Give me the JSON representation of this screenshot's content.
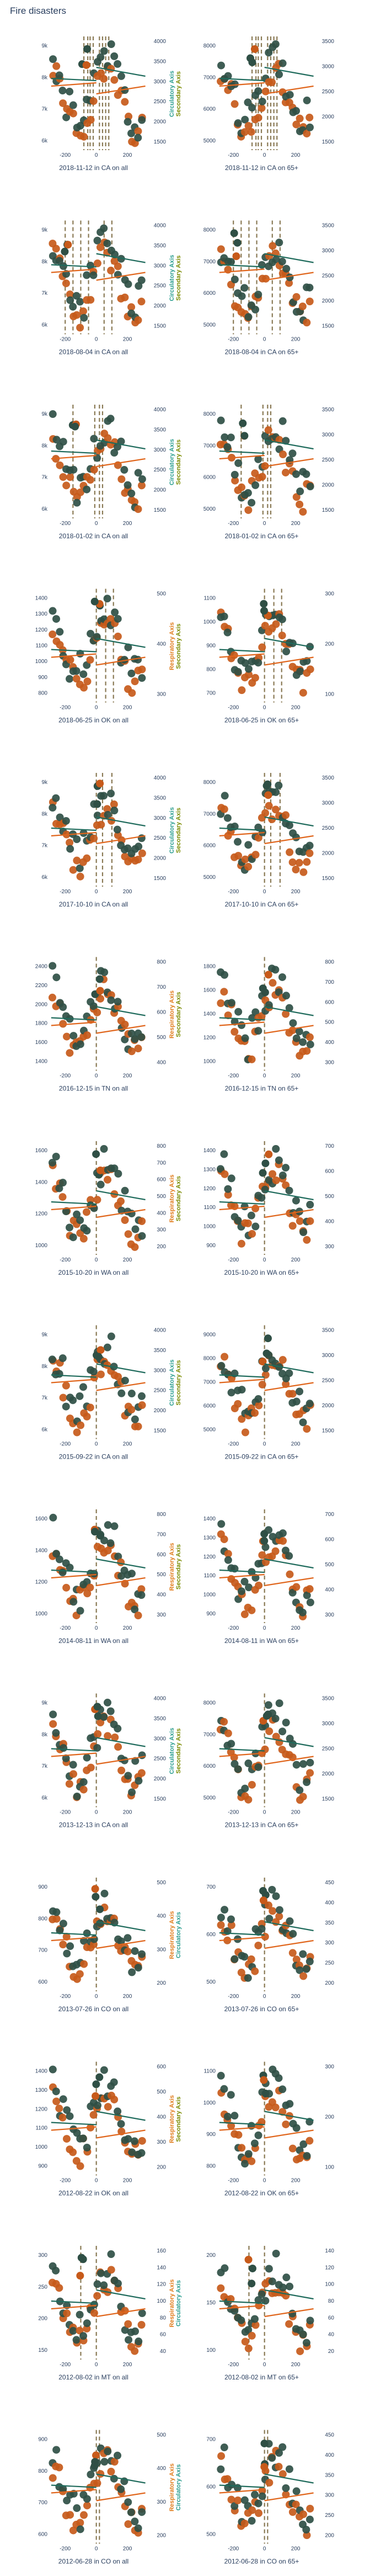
{
  "title": "Fire disasters",
  "colors": {
    "circulatory": "#1f6b5c",
    "respiratory": "#e0651b",
    "dot_dark": "#2f4f45",
    "dot_orange": "#c75a1a",
    "vline": "#8a7a55",
    "axis_text": "#2a3f5f",
    "circ_axis": "#2a9d8f",
    "resp_axis": "#e07b1a",
    "sec_axis": "#7a8b00"
  },
  "panels": [
    {
      "caption": "2018-11-12 in CA on all",
      "yticks": [
        "9k",
        "8k",
        "7k",
        "6k"
      ],
      "y2ticks": [
        "4000",
        "3500",
        "3000",
        "2500",
        "2000",
        "1500"
      ],
      "y2range": [
        1200,
        4300
      ],
      "seed": 1,
      "vlines": [
        -80,
        -55,
        -40,
        -20,
        20,
        40,
        60,
        80
      ],
      "level": 0.62,
      "lbl": "circ-sec",
      "xticks": [
        "-200",
        "0",
        "200"
      ]
    },
    {
      "caption": "2018-11-12 in CA on 65+",
      "yticks": [
        "8000",
        "7000",
        "6000",
        "5000"
      ],
      "y2ticks": [
        "3500",
        "3000",
        "2500",
        "2000",
        "1500"
      ],
      "y2range": [
        1200,
        3600
      ],
      "seed": 2,
      "vlines": [
        -80,
        -55,
        -40,
        -20,
        20,
        40,
        60,
        80
      ],
      "level": 0.62,
      "lbl": "",
      "xticks": [
        "-200",
        "0",
        "200"
      ]
    },
    {
      "caption": "2018-08-04 in CA on all",
      "yticks": [
        "9k",
        "8k",
        "7k",
        "6k"
      ],
      "y2ticks": [
        "4000",
        "3500",
        "3000",
        "2500",
        "2000",
        "1500"
      ],
      "y2range": [
        1200,
        4300
      ],
      "seed": 3,
      "vlines": [
        -200,
        -150,
        -100,
        -50,
        50,
        100
      ],
      "level": 0.6,
      "lbl": "circ-sec",
      "xticks": [
        "-200",
        "0",
        "200"
      ]
    },
    {
      "caption": "2018-08-04 in CA on 65+",
      "yticks": [
        "8000",
        "7000",
        "6000",
        "5000"
      ],
      "y2ticks": [
        "3500",
        "3000",
        "2500",
        "2000",
        "1500"
      ],
      "y2range": [
        1200,
        3600
      ],
      "seed": 4,
      "vlines": [
        -200,
        -150,
        -100,
        -50,
        50,
        100
      ],
      "level": 0.6,
      "lbl": "",
      "xticks": [
        "-200",
        "0",
        "200"
      ]
    },
    {
      "caption": "2018-01-02 in CA on all",
      "yticks": [
        "9k",
        "8k",
        "7k",
        "6k"
      ],
      "y2ticks": [
        "4000",
        "3500",
        "3000",
        "2500",
        "2000",
        "1500"
      ],
      "y2range": [
        1200,
        4300
      ],
      "seed": 5,
      "vlines": [
        -150,
        -10,
        20,
        40
      ],
      "level": 0.58,
      "lbl": "circ-sec",
      "xticks": [
        "-200",
        "0",
        "200"
      ]
    },
    {
      "caption": "2018-01-02 in CA on 65+",
      "yticks": [
        "8000",
        "7000",
        "6000",
        "5000"
      ],
      "y2ticks": [
        "3500",
        "3000",
        "2500",
        "2000",
        "1500"
      ],
      "y2range": [
        1200,
        3600
      ],
      "seed": 6,
      "vlines": [
        -150,
        -10,
        20,
        40
      ],
      "level": 0.58,
      "lbl": "",
      "xticks": [
        "-200",
        "0",
        "200"
      ]
    },
    {
      "caption": "2018-06-25 in OK on all",
      "yticks": [
        "1400",
        "1300",
        "1200",
        "1100",
        "1000",
        "900",
        "800"
      ],
      "y2ticks": [
        "500",
        "400",
        "300"
      ],
      "y2range": [
        200,
        560
      ],
      "seed": 7,
      "vlines": [
        0,
        60,
        110
      ],
      "level": 0.45,
      "lbl": "resp-sec",
      "xticks": [
        "-200",
        "0",
        "200"
      ]
    },
    {
      "caption": "2018-06-25 in OK on 65+",
      "yticks": [
        "1100",
        "1000",
        "900",
        "800",
        "700"
      ],
      "y2ticks": [
        "300",
        "200",
        "100"
      ],
      "y2range": [
        60,
        360
      ],
      "seed": 8,
      "vlines": [
        0,
        60,
        110
      ],
      "level": 0.45,
      "lbl": "",
      "xticks": [
        "-200",
        "0",
        "200"
      ]
    },
    {
      "caption": "2017-10-10 in CA on all",
      "yticks": [
        "9k",
        "8k",
        "7k",
        "6k"
      ],
      "y2ticks": [
        "4000",
        "3500",
        "3000",
        "2500",
        "2000",
        "1500"
      ],
      "y2range": [
        1200,
        4300
      ],
      "seed": 9,
      "vlines": [
        0,
        40,
        100
      ],
      "level": 0.5,
      "lbl": "circ-sec",
      "xticks": [
        "-200",
        "0",
        "200"
      ]
    },
    {
      "caption": "2017-10-10 in CA on 65+",
      "yticks": [
        "8000",
        "7000",
        "6000",
        "5000"
      ],
      "y2ticks": [
        "3500",
        "3000",
        "2500",
        "2000",
        "1500"
      ],
      "y2range": [
        1200,
        3600
      ],
      "seed": 10,
      "vlines": [
        0,
        40,
        100
      ],
      "level": 0.5,
      "lbl": "",
      "xticks": [
        "-200",
        "0",
        "200"
      ]
    },
    {
      "caption": "2016-12-15 in TN on all",
      "yticks": [
        "2400",
        "2200",
        "2000",
        "1800",
        "1600",
        "1400"
      ],
      "y2ticks": [
        "800",
        "700",
        "600",
        "500",
        "400"
      ],
      "y2range": [
        340,
        880
      ],
      "seed": 11,
      "vlines": [
        0
      ],
      "level": 0.45,
      "lbl": "resp-sec",
      "xticks": [
        "-200",
        "0",
        "200"
      ]
    },
    {
      "caption": "2016-12-15 in TN on 65+",
      "yticks": [
        "1800",
        "1600",
        "1400",
        "1200",
        "1000"
      ],
      "y2ticks": [
        "800",
        "700",
        "600",
        "500",
        "400",
        "300"
      ],
      "y2range": [
        240,
        860
      ],
      "seed": 12,
      "vlines": [
        0
      ],
      "level": 0.45,
      "lbl": "",
      "xticks": [
        "-200",
        "0",
        "200"
      ]
    },
    {
      "caption": "2015-10-20 in WA on all",
      "yticks": [
        "1600",
        "1400",
        "1200",
        "1000"
      ],
      "y2ticks": [
        "800",
        "700",
        "600",
        "500",
        "400",
        "300",
        "200"
      ],
      "y2range": [
        150,
        860
      ],
      "seed": 13,
      "vlines": [
        0
      ],
      "level": 0.45,
      "lbl": "resp-sec",
      "xticks": [
        "-200",
        "0",
        "200"
      ]
    },
    {
      "caption": "2015-10-20 in WA on 65+",
      "yticks": [
        "1400",
        "1300",
        "1200",
        "1100",
        "1000",
        "900"
      ],
      "y2ticks": [
        "700",
        "600",
        "500",
        "400",
        "300"
      ],
      "y2range": [
        230,
        760
      ],
      "seed": 14,
      "vlines": [
        0
      ],
      "level": 0.45,
      "lbl": "",
      "xticks": [
        "-200",
        "0",
        "200"
      ]
    },
    {
      "caption": "2015-09-22 in CA on all",
      "yticks": [
        "9k",
        "8k",
        "7k",
        "6k"
      ],
      "y2ticks": [
        "4000",
        "3500",
        "3000",
        "2500",
        "2000",
        "1500"
      ],
      "y2range": [
        1200,
        4300
      ],
      "seed": 15,
      "vlines": [
        0
      ],
      "level": 0.55,
      "lbl": "circ-sec",
      "xticks": [
        "-200",
        "0",
        "200"
      ]
    },
    {
      "caption": "2015-09-22 in CA on 65+",
      "yticks": [
        "9000",
        "8000",
        "7000",
        "6000",
        "5000"
      ],
      "y2ticks": [
        "3500",
        "3000",
        "2500",
        "2000",
        "1500"
      ],
      "y2range": [
        1200,
        3600
      ],
      "seed": 16,
      "vlines": [
        0
      ],
      "level": 0.55,
      "lbl": "",
      "xticks": [
        "-200",
        "0",
        "200"
      ]
    },
    {
      "caption": "2014-08-11 in WA on all",
      "yticks": [
        "1600",
        "1400",
        "1200",
        "1000"
      ],
      "y2ticks": [
        "800",
        "700",
        "600",
        "500",
        "400",
        "300"
      ],
      "y2range": [
        230,
        860
      ],
      "seed": 17,
      "vlines": [
        0
      ],
      "level": 0.45,
      "lbl": "resp-sec",
      "xticks": [
        "-200",
        "0",
        "200"
      ]
    },
    {
      "caption": "2014-08-11 in WA on 65+",
      "yticks": [
        "1400",
        "1300",
        "1200",
        "1100",
        "1000",
        "900"
      ],
      "y2ticks": [
        "700",
        "600",
        "500",
        "400",
        "300"
      ],
      "y2range": [
        230,
        760
      ],
      "seed": 18,
      "vlines": [
        0
      ],
      "level": 0.45,
      "lbl": "",
      "xticks": [
        "-200",
        "0",
        "200"
      ]
    },
    {
      "caption": "2013-12-13 in CA on all",
      "yticks": [
        "9k",
        "8k",
        "7k",
        "6k"
      ],
      "y2ticks": [
        "4000",
        "3500",
        "3000",
        "2500",
        "2000",
        "1500"
      ],
      "y2range": [
        1200,
        4300
      ],
      "seed": 19,
      "vlines": [
        0
      ],
      "level": 0.5,
      "lbl": "circ-sec",
      "xticks": [
        "-200",
        "0",
        "200"
      ]
    },
    {
      "caption": "2013-12-13 in CA on 65+",
      "yticks": [
        "8000",
        "7000",
        "6000",
        "5000"
      ],
      "y2ticks": [
        "3500",
        "3000",
        "2500",
        "2000",
        "1500"
      ],
      "y2range": [
        1200,
        3600
      ],
      "seed": 20,
      "vlines": [
        0
      ],
      "level": 0.5,
      "lbl": "",
      "xticks": [
        "-200",
        "0",
        "200"
      ]
    },
    {
      "caption": "2013-07-26 in CO on all",
      "yticks": [
        "900",
        "800",
        "700",
        "600"
      ],
      "y2ticks": [
        "500",
        "400",
        "300",
        "200"
      ],
      "y2range": [
        150,
        560
      ],
      "seed": 21,
      "vlines": [
        0
      ],
      "level": 0.5,
      "lbl": "resp-circ",
      "xticks": [
        "-200",
        "0",
        "200"
      ]
    },
    {
      "caption": "2013-07-26 in CO on 65+",
      "yticks": [
        "700",
        "600",
        "500"
      ],
      "y2ticks": [
        "450",
        "400",
        "350",
        "300",
        "250",
        "200"
      ],
      "y2range": [
        180,
        470
      ],
      "seed": 22,
      "vlines": [
        0
      ],
      "level": 0.5,
      "lbl": "",
      "xticks": [
        "-200",
        "0",
        "200"
      ]
    },
    {
      "caption": "2012-08-22 in OK on all",
      "yticks": [
        "1400",
        "1300",
        "1200",
        "1100",
        "1000",
        "900"
      ],
      "y2ticks": [
        "600",
        "500",
        "400",
        "300",
        "200"
      ],
      "y2range": [
        150,
        660
      ],
      "seed": 23,
      "vlines": [
        0
      ],
      "level": 0.45,
      "lbl": "resp-sec",
      "xticks": [
        "-200",
        "0",
        "200"
      ]
    },
    {
      "caption": "2012-08-22 in OK on 65+",
      "yticks": [
        "1100",
        "1000",
        "900",
        "800"
      ],
      "y2ticks": [
        "300",
        "200",
        "100"
      ],
      "y2range": [
        60,
        360
      ],
      "seed": 24,
      "vlines": [
        0
      ],
      "level": 0.45,
      "lbl": "",
      "xticks": [
        "-200",
        "0",
        "200"
      ]
    },
    {
      "caption": "2012-08-02 in MT on all",
      "yticks": [
        "300",
        "250",
        "200",
        "150"
      ],
      "y2ticks": [
        "160",
        "140",
        "120",
        "100",
        "80",
        "60",
        "40"
      ],
      "y2range": [
        30,
        170
      ],
      "seed": 25,
      "vlines": [
        -100,
        0
      ],
      "level": 0.5,
      "lbl": "resp-circ",
      "xticks": [
        "-200",
        "0",
        "200"
      ]
    },
    {
      "caption": "2012-08-02 in MT on 65+",
      "yticks": [
        "200",
        "150",
        "100"
      ],
      "y2ticks": [
        "140",
        "120",
        "100",
        "80",
        "60",
        "40",
        "20"
      ],
      "y2range": [
        15,
        150
      ],
      "seed": 26,
      "vlines": [
        -100,
        0
      ],
      "level": 0.5,
      "lbl": "",
      "xticks": [
        "-200",
        "0",
        "200"
      ]
    },
    {
      "caption": "2012-06-28 in CO on all",
      "yticks": [
        "900",
        "800",
        "700",
        "600"
      ],
      "y2ticks": [
        "500",
        "400",
        "300",
        "200"
      ],
      "y2range": [
        150,
        560
      ],
      "seed": 27,
      "vlines": [
        0,
        20
      ],
      "level": 0.5,
      "lbl": "resp-circ",
      "xticks": [
        "-200",
        "0",
        "200"
      ]
    },
    {
      "caption": "2012-06-28 in CO on 65+",
      "yticks": [
        "700",
        "600",
        "500"
      ],
      "y2ticks": [
        "450",
        "400",
        "350",
        "300",
        "250",
        "200"
      ],
      "y2range": [
        180,
        470
      ],
      "seed": 28,
      "vlines": [
        0,
        20
      ],
      "level": 0.5,
      "lbl": "",
      "xticks": [
        "-200",
        "0",
        "200"
      ]
    }
  ],
  "axis_labels": {
    "circ": "Circulatory Axis",
    "sec": "Secondary Axis",
    "resp": "Respiratory Axis"
  }
}
